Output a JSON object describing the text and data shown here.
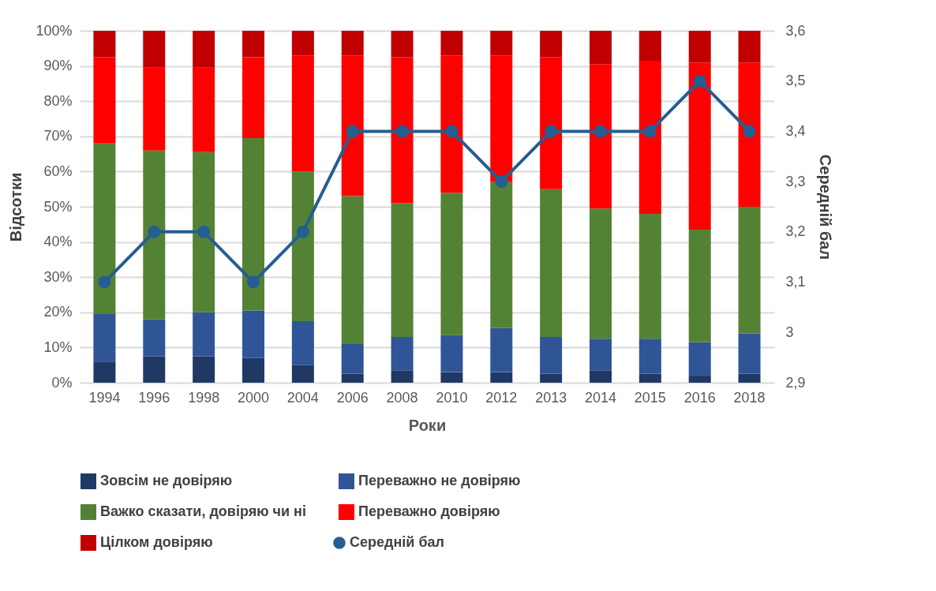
{
  "chart_data": {
    "type": "bar",
    "stacked": true,
    "xlabel": "Роки",
    "ylabel": "Відсотки",
    "y2label": "Середній бал",
    "categories": [
      "1994",
      "1996",
      "1998",
      "2000",
      "2004",
      "2006",
      "2008",
      "2010",
      "2012",
      "2013",
      "2014",
      "2015",
      "2016",
      "2018"
    ],
    "ylim": [
      0,
      100
    ],
    "yticks": [
      {
        "value": 0,
        "label": "0%"
      },
      {
        "value": 10,
        "label": "10%"
      },
      {
        "value": 20,
        "label": "20%"
      },
      {
        "value": 30,
        "label": "30%"
      },
      {
        "value": 40,
        "label": "40%"
      },
      {
        "value": 50,
        "label": "50%"
      },
      {
        "value": 60,
        "label": "60%"
      },
      {
        "value": 70,
        "label": "70%"
      },
      {
        "value": 80,
        "label": "80%"
      },
      {
        "value": 90,
        "label": "90%"
      },
      {
        "value": 100,
        "label": "100%"
      }
    ],
    "y2lim": [
      2.9,
      3.6
    ],
    "y2ticks": [
      {
        "value": 2.9,
        "label": "2,9"
      },
      3,
      {
        "value": 3.1,
        "label": "3,1"
      },
      {
        "value": 3.2,
        "label": "3,2"
      },
      {
        "value": 3.3,
        "label": "3,3"
      },
      {
        "value": 3.4,
        "label": "3,4"
      },
      {
        "value": 3.5,
        "label": "3,5"
      },
      {
        "value": 3.6,
        "label": "3,6"
      }
    ],
    "grid": "y",
    "legend": "bottom",
    "marker": "circle",
    "series": [
      {
        "name": "Зовсім не довіряю",
        "color": "#1f3864",
        "values": [
          6,
          7.5,
          7.5,
          7,
          5,
          2.5,
          3.5,
          3,
          3,
          2.5,
          3.5,
          2.5,
          2,
          2.5
        ]
      },
      {
        "name": "Переважно не довіряю",
        "color": "#2f5597",
        "values": [
          13.5,
          10.5,
          12.5,
          13.5,
          12.5,
          8.5,
          9.5,
          10.5,
          12.5,
          10.5,
          9,
          10,
          9.5,
          11.5
        ]
      },
      {
        "name": "Важко сказати, довіряю чи ні",
        "color": "#548235",
        "values": [
          48.5,
          48,
          45.5,
          49,
          42.5,
          42,
          38,
          40.5,
          41.5,
          42,
          37,
          35.5,
          32,
          36
        ]
      },
      {
        "name": "Переважно довіряю",
        "color": "#ff0000",
        "values": [
          24.5,
          23.5,
          24,
          23,
          33,
          40,
          41.5,
          39,
          36,
          37.5,
          41,
          43.5,
          47.5,
          41
        ]
      },
      {
        "name": "Цілком довіряю",
        "color": "#c00000",
        "values": [
          7.5,
          10.5,
          10.5,
          7.5,
          7,
          7,
          7.5,
          7,
          7,
          7.5,
          9.5,
          8.5,
          9,
          9
        ]
      },
      {
        "name": "Середній бал",
        "type": "line",
        "axis": "y2",
        "color": "#255e91",
        "values": [
          3.1,
          3.2,
          3.2,
          3.1,
          3.2,
          3.4,
          3.4,
          3.4,
          3.3,
          3.4,
          3.4,
          3.4,
          3.5,
          3.4
        ]
      }
    ]
  }
}
